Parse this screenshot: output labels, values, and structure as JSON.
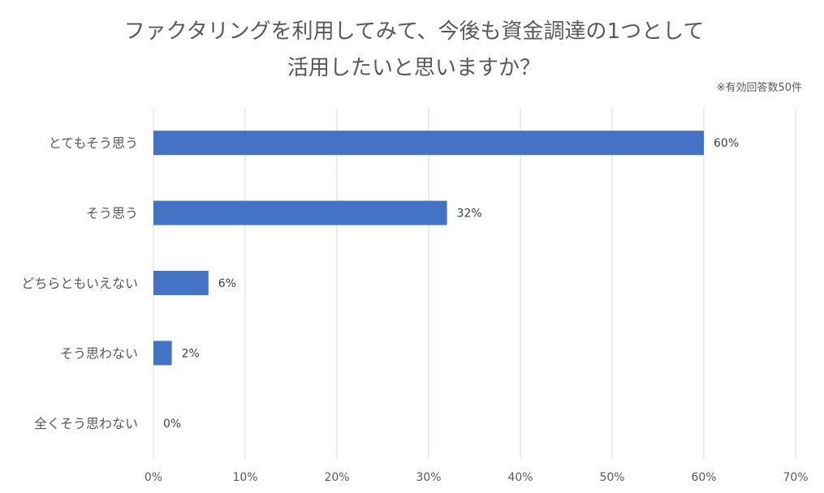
{
  "chart_data": {
    "type": "bar",
    "orientation": "horizontal",
    "title_lines": [
      "ファクタリングを利用してみて、今後も資金調達の1つとして",
      "活用したいと思いますか？"
    ],
    "note": "※有効回答数50件",
    "categories": [
      "とてもそう思う",
      "そう思う",
      "どちらともいえない",
      "そう思わない",
      "全くそう思わない"
    ],
    "values": [
      60,
      32,
      6,
      2,
      0
    ],
    "unit": "%",
    "xlim": [
      0,
      70
    ],
    "x_ticks": [
      0,
      10,
      20,
      30,
      40,
      50,
      60,
      70
    ],
    "xlabel": "",
    "ylabel": "",
    "grid": "vertical",
    "legend": "none",
    "bar_color": "#4472C4",
    "grid_color": "#D9D9D9",
    "text_color": "#595959"
  }
}
